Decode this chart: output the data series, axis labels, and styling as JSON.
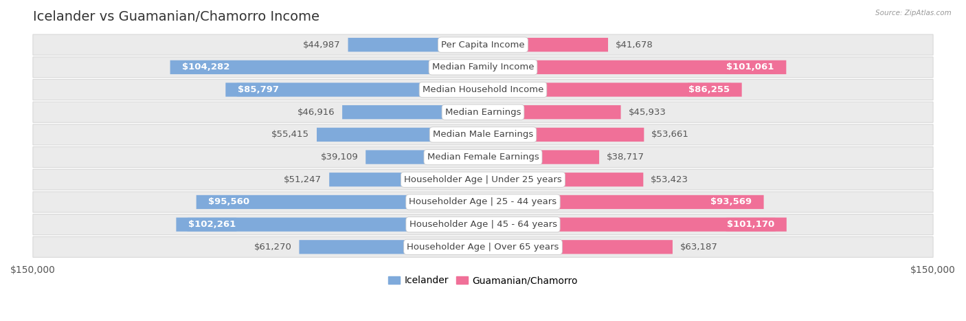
{
  "title": "Icelander vs Guamanian/Chamorro Income",
  "source": "Source: ZipAtlas.com",
  "categories": [
    "Per Capita Income",
    "Median Family Income",
    "Median Household Income",
    "Median Earnings",
    "Median Male Earnings",
    "Median Female Earnings",
    "Householder Age | Under 25 years",
    "Householder Age | 25 - 44 years",
    "Householder Age | 45 - 64 years",
    "Householder Age | Over 65 years"
  ],
  "icelander_values": [
    44987,
    104282,
    85797,
    46916,
    55415,
    39109,
    51247,
    95560,
    102261,
    61270
  ],
  "guamanian_values": [
    41678,
    101061,
    86255,
    45933,
    53661,
    38717,
    53423,
    93569,
    101170,
    63187
  ],
  "icelander_color": "#7faadb",
  "guamanian_color": "#f07098",
  "icelander_label": "Icelander",
  "guamanian_label": "Guamanian/Chamorro",
  "xlim": 150000,
  "row_bg": "#ebebeb",
  "row_edge": "#d8d8d8",
  "bar_label_fontsize": 9.5,
  "category_fontsize": 9.5,
  "legend_fontsize": 10,
  "title_fontsize": 14,
  "axis_label_fontsize": 10,
  "ice_threshold": 67500,
  "gua_threshold": 67500
}
